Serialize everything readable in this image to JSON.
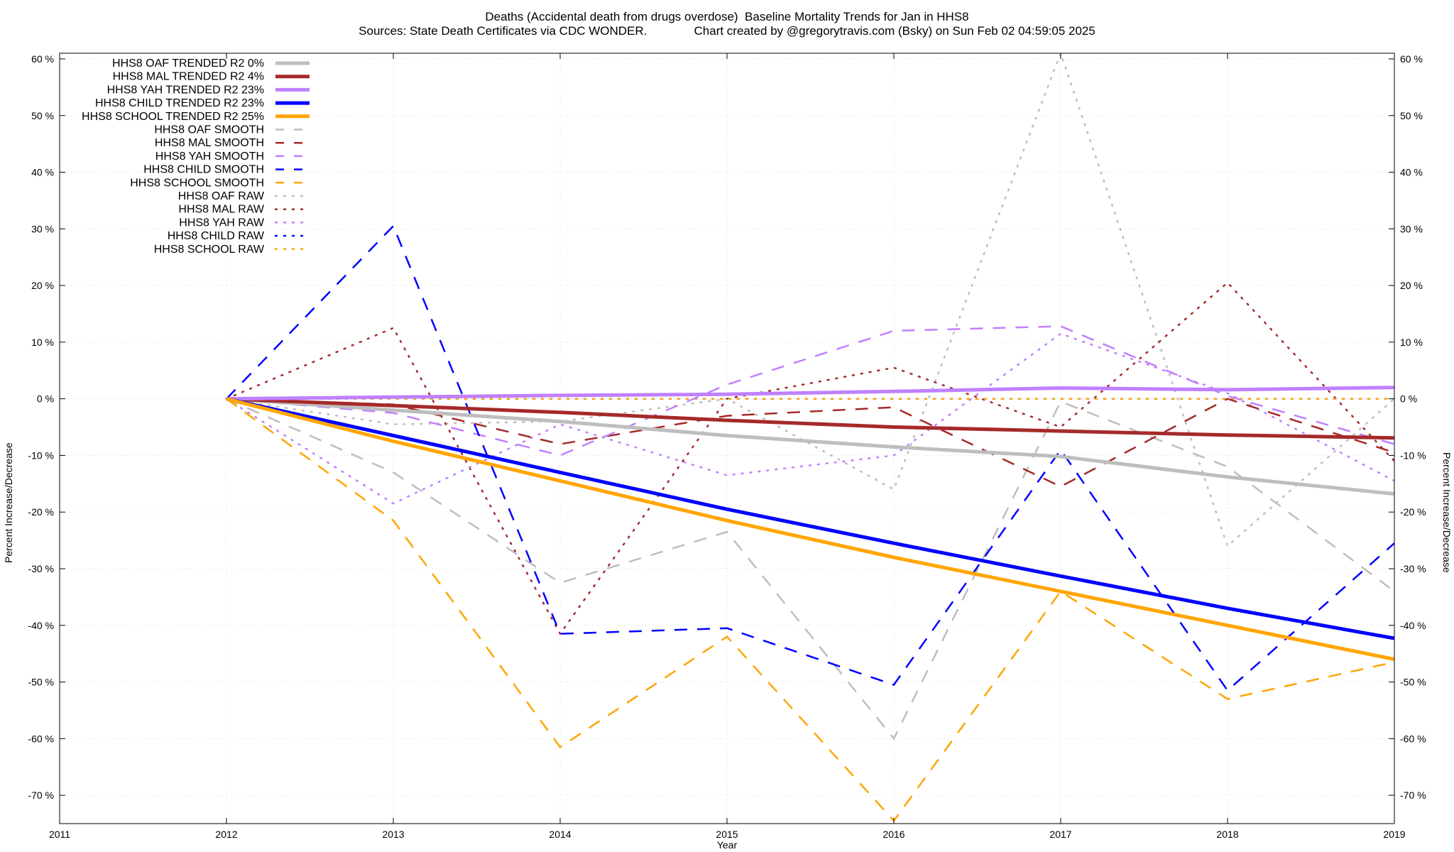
{
  "title": "Deaths (Accidental death from drugs overdose)  Baseline Mortality Trends for Jan in HHS8",
  "subtitle": "Sources: State Death Certificates via CDC WONDER.              Chart created by @gregorytravis.com (Bsky) on Sun Feb 02 04:59:05 2025",
  "chart_data": {
    "type": "line",
    "title": "Deaths (Accidental death from drugs overdose)  Baseline Mortality Trends for Jan in HHS8",
    "subtitle": "Sources: State Death Certificates via CDC WONDER.              Chart created by @gregorytravis.com (Bsky) on Sun Feb 02 04:59:05 2025",
    "xlabel": "Year",
    "ylabel": "Percent Increase/Decrease",
    "y2label": "Percent Increase/Decrease",
    "xlim": [
      2011,
      2019
    ],
    "ylim": [
      -75,
      61
    ],
    "x_ticks": [
      2011,
      2012,
      2013,
      2014,
      2015,
      2016,
      2017,
      2018,
      2019
    ],
    "x_tick_labels": [
      "2011",
      "2012",
      "2013",
      "2014",
      "2015",
      "2016",
      "2017",
      "2018",
      "2019"
    ],
    "y_ticks": [
      60,
      50,
      40,
      30,
      20,
      10,
      0,
      -10,
      -20,
      -30,
      -40,
      -50,
      -60,
      -70
    ],
    "y_tick_labels": [
      "60 %",
      "50 %",
      "40 %",
      "30 %",
      "20 %",
      "10 %",
      "0 %",
      "-10 %",
      "-20 %",
      "-30 %",
      "-40 %",
      "-50 %",
      "-60 %",
      "-70 %"
    ],
    "grid": true,
    "legend_position": "top-left",
    "series": [
      {
        "name": "HHS8 OAF TRENDED R2  0%",
        "style": "solid",
        "color": "#bebebe",
        "x": [
          2012,
          2013,
          2014,
          2015,
          2016,
          2017,
          2018,
          2019
        ],
        "y": [
          0,
          -2,
          -4,
          -6.5,
          -8.5,
          -10.2,
          -13.8,
          -16.8
        ]
      },
      {
        "name": "HHS8 MAL TRENDED R2  4%",
        "style": "solid",
        "color": "#a52a2a",
        "x": [
          2012,
          2013,
          2014,
          2015,
          2016,
          2017,
          2018,
          2019
        ],
        "y": [
          0,
          -1.2,
          -2.4,
          -3.8,
          -5,
          -5.7,
          -6.4,
          -6.9
        ]
      },
      {
        "name": "HHS8 YAH TRENDED R2  23%",
        "style": "solid",
        "color": "#c080ff",
        "x": [
          2012,
          2013,
          2014,
          2015,
          2016,
          2017,
          2018,
          2019
        ],
        "y": [
          0,
          0.3,
          0.6,
          0.8,
          1.3,
          1.9,
          1.6,
          2.0
        ]
      },
      {
        "name": "HHS8 CHILD TRENDED R2  23%",
        "style": "solid",
        "color": "#0000ff",
        "x": [
          2012,
          2013,
          2014,
          2015,
          2016,
          2017,
          2018,
          2019
        ],
        "y": [
          0,
          -6.5,
          -13,
          -19.5,
          -25.5,
          -31.3,
          -37,
          -42.3
        ]
      },
      {
        "name": "HHS8 SCHOOL TRENDED R2  25%",
        "style": "solid",
        "color": "#ffa500",
        "x": [
          2012,
          2013,
          2014,
          2015,
          2016,
          2017,
          2018,
          2019
        ],
        "y": [
          0,
          -7.5,
          -14.5,
          -21.5,
          -28,
          -34,
          -40,
          -46
        ]
      },
      {
        "name": "HHS8 OAF SMOOTH",
        "style": "dashed",
        "color": "#bebebe",
        "x": [
          2012,
          2013,
          2014,
          2015,
          2016,
          2017,
          2018,
          2019
        ],
        "y": [
          0,
          -13,
          -32.5,
          -23.5,
          -60,
          -0.5,
          -12,
          -34
        ]
      },
      {
        "name": "HHS8 MAL SMOOTH",
        "style": "dashed",
        "color": "#a52a2a",
        "x": [
          2012,
          2013,
          2014,
          2015,
          2016,
          2017,
          2018,
          2019
        ],
        "y": [
          0,
          -1,
          -8,
          -3,
          -1.5,
          -15.5,
          0,
          -9.5
        ]
      },
      {
        "name": "HHS8 YAH SMOOTH",
        "style": "dashed",
        "color": "#c080ff",
        "x": [
          2012,
          2013,
          2014,
          2015,
          2016,
          2017,
          2018,
          2019
        ],
        "y": [
          0,
          -2.5,
          -10,
          2.5,
          12,
          12.8,
          0.5,
          -8
        ]
      },
      {
        "name": "HHS8 CHILD SMOOTH",
        "style": "dashed",
        "color": "#0000ff",
        "x": [
          2012,
          2013,
          2014,
          2015,
          2016,
          2017,
          2018,
          2019
        ],
        "y": [
          0,
          30.5,
          -41.5,
          -40.5,
          -50.5,
          -9,
          -51.5,
          -25.5
        ]
      },
      {
        "name": "HHS8 SCHOOL SMOOTH",
        "style": "dashed",
        "color": "#ffa500",
        "x": [
          2012,
          2013,
          2014,
          2015,
          2016,
          2017,
          2018,
          2019
        ],
        "y": [
          0,
          -21.5,
          -61.5,
          -42,
          -74.5,
          -34,
          -53,
          -46.5
        ]
      },
      {
        "name": "HHS8 OAF RAW",
        "style": "dotted",
        "color": "#bebebe",
        "x": [
          2012,
          2013,
          2014,
          2015,
          2016,
          2017,
          2018,
          2019
        ],
        "y": [
          0,
          -4.5,
          -4,
          0,
          -16,
          61,
          -26,
          0
        ]
      },
      {
        "name": "HHS8 MAL RAW",
        "style": "dotted",
        "color": "#a52a2a",
        "x": [
          2012,
          2013,
          2014,
          2015,
          2016,
          2017,
          2018,
          2019
        ],
        "y": [
          0,
          12.5,
          -41.5,
          0,
          5.5,
          -5,
          20.5,
          -11
        ]
      },
      {
        "name": "HHS8 YAH RAW",
        "style": "dotted",
        "color": "#c080ff",
        "x": [
          2012,
          2013,
          2014,
          2015,
          2016,
          2017,
          2018,
          2019
        ],
        "y": [
          0,
          -18.5,
          -4.5,
          -13.5,
          -10,
          11.5,
          1,
          -14.5
        ]
      },
      {
        "name": "HHS8 CHILD RAW",
        "style": "dotted",
        "color": "#0000ff",
        "x": [
          2012,
          2013,
          2014,
          2015,
          2016,
          2017,
          2018,
          2019
        ],
        "y": [
          0,
          0,
          0,
          0,
          0,
          0,
          0,
          0
        ]
      },
      {
        "name": "HHS8 SCHOOL RAW",
        "style": "dotted",
        "color": "#ffa500",
        "x": [
          2012,
          2013,
          2014,
          2015,
          2016,
          2017,
          2018,
          2019
        ],
        "y": [
          0,
          0,
          0,
          0,
          0,
          0,
          0,
          0
        ]
      }
    ]
  }
}
